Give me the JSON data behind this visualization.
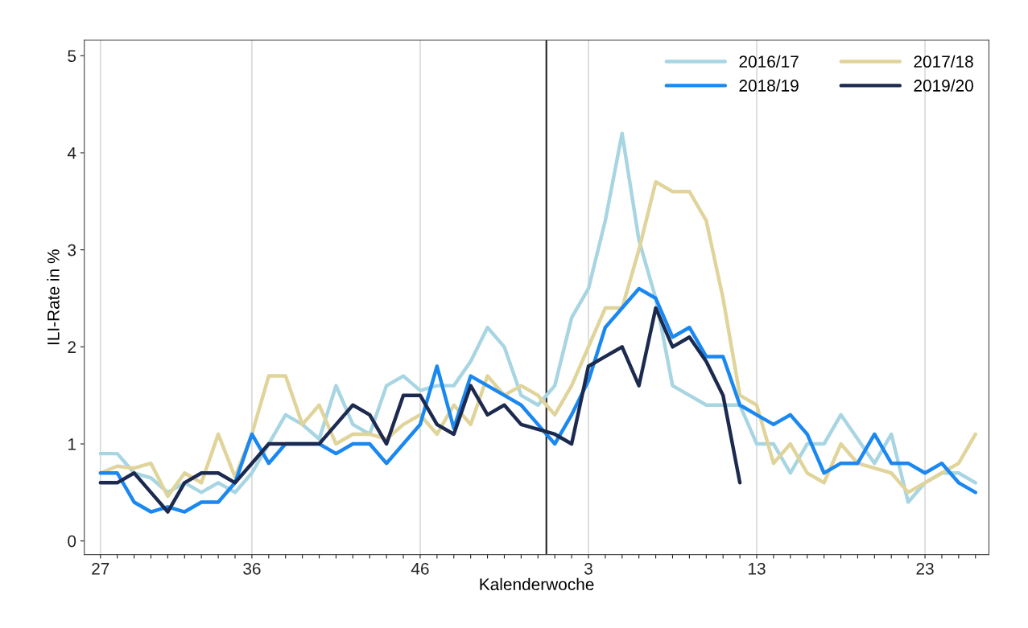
{
  "chart_data": {
    "type": "line",
    "xlabel": "Kalenderwoche",
    "ylabel": "ILI-Rate in %",
    "categories": [
      "27",
      null,
      null,
      null,
      null,
      null,
      null,
      null,
      null,
      "36",
      null,
      null,
      null,
      null,
      null,
      null,
      null,
      null,
      null,
      "46",
      null,
      null,
      null,
      null,
      null,
      null,
      null,
      null,
      null,
      "3",
      null,
      null,
      null,
      null,
      null,
      null,
      null,
      null,
      null,
      "13",
      null,
      null,
      null,
      null,
      null,
      null,
      null,
      null,
      null,
      "23",
      null,
      null,
      null
    ],
    "ylim": [
      -0.14,
      5.16
    ],
    "yticks": [
      0,
      1,
      2,
      3,
      4,
      5
    ],
    "grid": "x",
    "legend": "top right",
    "series": [
      {
        "name": "2016/17",
        "color": "#a8d5e2",
        "values": [
          0.9,
          0.9,
          0.7,
          0.65,
          0.5,
          0.6,
          0.5,
          0.6,
          0.5,
          0.7,
          1.0,
          1.3,
          1.2,
          1.05,
          1.6,
          1.2,
          1.1,
          1.6,
          1.7,
          1.55,
          1.6,
          1.6,
          1.85,
          2.2,
          2.0,
          1.5,
          1.4,
          1.6,
          2.3,
          2.6,
          3.3,
          4.2,
          3.1,
          2.5,
          1.6,
          1.5,
          1.4,
          1.4,
          1.4,
          1.0,
          1.0,
          0.7,
          1.0,
          1.0,
          1.3,
          1.05,
          0.8,
          1.1,
          0.4,
          0.6,
          0.7,
          0.7,
          0.6
        ]
      },
      {
        "name": "2017/18",
        "color": "#e0d49a",
        "values": [
          0.7,
          0.77,
          0.75,
          0.8,
          0.46,
          0.7,
          0.6,
          1.1,
          0.66,
          1.1,
          1.7,
          1.7,
          1.2,
          1.4,
          1.0,
          1.1,
          1.1,
          1.05,
          1.2,
          1.3,
          1.1,
          1.4,
          1.2,
          1.7,
          1.5,
          1.6,
          1.5,
          1.3,
          1.6,
          2.0,
          2.4,
          2.4,
          3.0,
          3.7,
          3.6,
          3.6,
          3.3,
          2.5,
          1.5,
          1.4,
          0.8,
          1.0,
          0.7,
          0.6,
          1.0,
          0.8,
          0.75,
          0.7,
          0.5,
          0.6,
          0.7,
          0.8,
          1.1
        ]
      },
      {
        "name": "2018/19",
        "color": "#1a88f0",
        "values": [
          0.7,
          0.7,
          0.4,
          0.3,
          0.35,
          0.3,
          0.4,
          0.4,
          0.6,
          1.1,
          0.8,
          1.0,
          1.0,
          1.0,
          0.9,
          1.0,
          1.0,
          0.8,
          1.0,
          1.2,
          1.8,
          1.16,
          1.7,
          1.6,
          1.5,
          1.4,
          1.2,
          1.0,
          1.3,
          1.65,
          2.2,
          2.4,
          2.6,
          2.5,
          2.1,
          2.2,
          1.9,
          1.9,
          1.4,
          1.3,
          1.2,
          1.3,
          1.1,
          0.7,
          0.8,
          0.8,
          1.1,
          0.8,
          0.8,
          0.7,
          0.8,
          0.6,
          0.5
        ]
      },
      {
        "name": "2019/20",
        "color": "#1c2a4f",
        "values": [
          0.6,
          0.6,
          0.7,
          0.5,
          0.3,
          0.6,
          0.7,
          0.7,
          0.6,
          0.8,
          1.0,
          1.0,
          1.0,
          1.0,
          1.2,
          1.4,
          1.3,
          1.0,
          1.5,
          1.5,
          1.2,
          1.1,
          1.6,
          1.3,
          1.4,
          1.2,
          1.15,
          1.1,
          1.0,
          1.8,
          1.9,
          2.0,
          1.6,
          2.4,
          2.0,
          2.1,
          1.85,
          1.5,
          0.6,
          null,
          null,
          null,
          null,
          null,
          null,
          null,
          null,
          null,
          null,
          null,
          null,
          null,
          null
        ]
      }
    ]
  }
}
